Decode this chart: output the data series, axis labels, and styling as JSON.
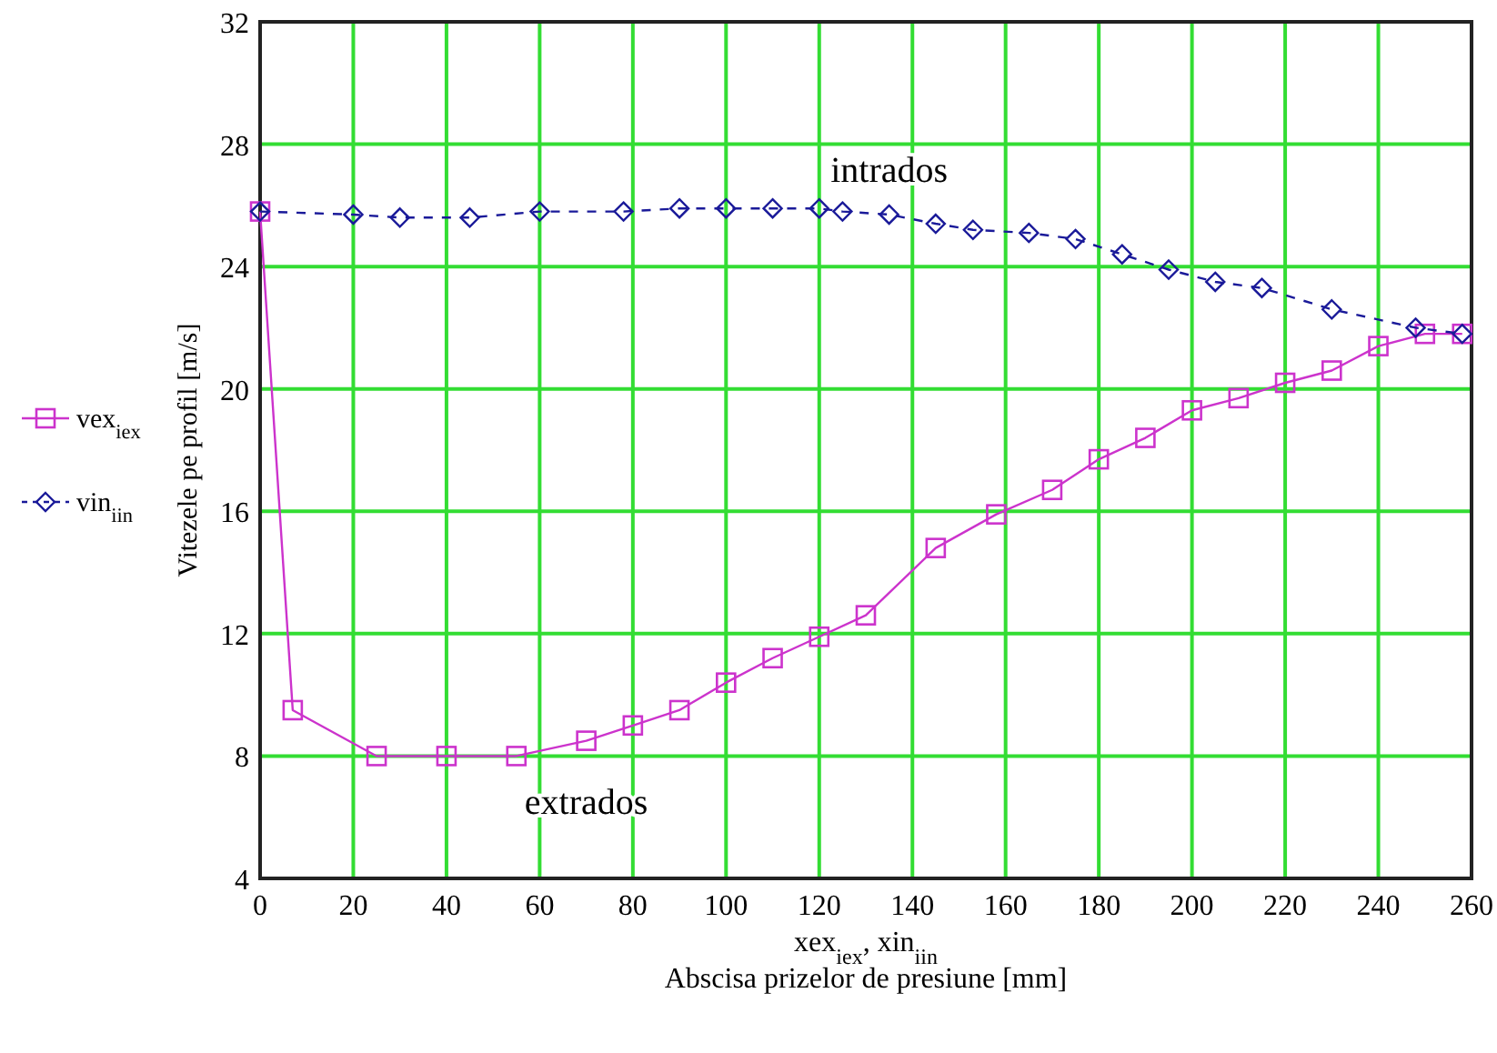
{
  "chart_data": {
    "type": "line",
    "xlabel": "xex$_{iex}$, xin$_{iin}$\nAbscisa prizelor de presiune  [mm]",
    "ylabel": "Vitezele pe profil  [m/s]",
    "xlim": [
      0,
      260
    ],
    "xticks": [
      0,
      20,
      40,
      60,
      80,
      100,
      120,
      140,
      160,
      180,
      200,
      220,
      240,
      260
    ],
    "ylim": [
      4,
      32
    ],
    "yticks": [
      4,
      8,
      12,
      16,
      20,
      24,
      28,
      32
    ],
    "grid": true,
    "legend": "left",
    "annotations": [
      {
        "text": "intrados",
        "x": 135,
        "y": 25.7
      },
      {
        "text": "extrados",
        "x": 70,
        "y": 8.5
      }
    ],
    "series": [
      {
        "name": "vex$_{iex}$",
        "color": "#cc33cc",
        "marker": "square",
        "line_style": "solid",
        "x": [
          0,
          7,
          25,
          40,
          55,
          70,
          80,
          90,
          100,
          110,
          120,
          130,
          145,
          158,
          170,
          180,
          190,
          200,
          210,
          220,
          230,
          240,
          250,
          258
        ],
        "values": [
          25.8,
          9.5,
          8,
          8,
          8,
          8.5,
          9,
          9.5,
          10.4,
          11.2,
          11.9,
          12.6,
          14.8,
          15.9,
          16.7,
          17.7,
          18.4,
          19.3,
          19.7,
          20.2,
          20.6,
          21.4,
          21.8,
          21.8
        ]
      },
      {
        "name": "vin$_{iin}$",
        "color": "#1a1a99",
        "marker": "diamond",
        "line_style": "dashed",
        "x": [
          0,
          20,
          30,
          45,
          60,
          78,
          90,
          100,
          110,
          120,
          125,
          135,
          145,
          153,
          165,
          175,
          185,
          195,
          205,
          215,
          230,
          248,
          258
        ],
        "values": [
          25.8,
          25.7,
          25.6,
          25.6,
          25.8,
          25.8,
          25.9,
          25.9,
          25.9,
          25.9,
          25.8,
          25.7,
          25.4,
          25.2,
          25.1,
          24.9,
          24.4,
          23.9,
          23.5,
          23.3,
          22.6,
          22.0,
          21.8
        ]
      }
    ]
  }
}
